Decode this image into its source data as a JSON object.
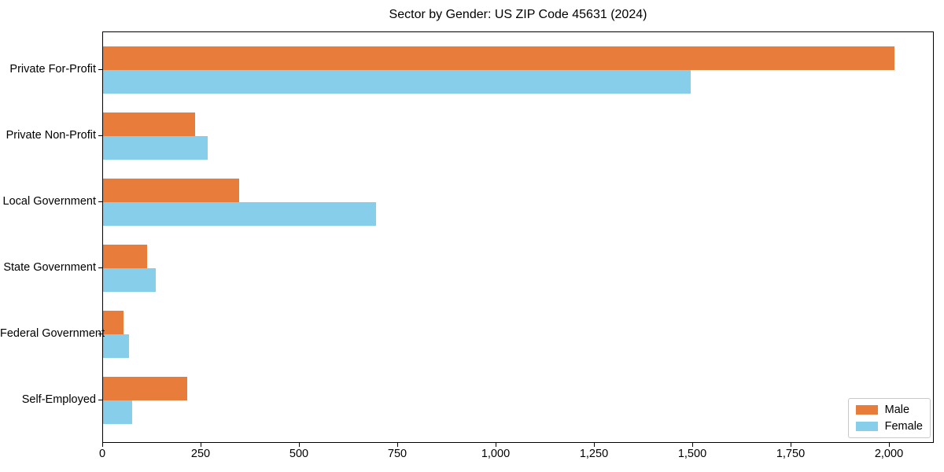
{
  "title": "Sector by Gender: US ZIP Code 45631 (2024)",
  "chart_data": {
    "type": "bar",
    "orientation": "horizontal",
    "title": "Sector by Gender: US ZIP Code 45631 (2024)",
    "categories": [
      "Private For-Profit",
      "Private Non-Profit",
      "Local Government",
      "State Government",
      "Federal Government",
      "Self-Employed"
    ],
    "series": [
      {
        "name": "Male",
        "color": "#e87d3b",
        "values": [
          2012,
          234,
          346,
          112,
          52,
          214
        ]
      },
      {
        "name": "Female",
        "color": "#87ceeb",
        "values": [
          1494,
          266,
          694,
          134,
          66,
          74
        ]
      }
    ],
    "xlabel": "",
    "ylabel": "",
    "xlim": [
      0,
      2114
    ],
    "x_ticks": [
      0,
      250,
      500,
      750,
      1000,
      1250,
      1500,
      1750,
      2000
    ],
    "x_tick_labels": [
      "0",
      "250",
      "500",
      "750",
      "1,000",
      "1,250",
      "1,500",
      "1,750",
      "2,000"
    ],
    "grid": false,
    "legend_position": "lower right",
    "plot_border_color": "#000000",
    "background_color": "#ffffff"
  },
  "legend": {
    "items": [
      {
        "label": "Male",
        "color": "#e87d3b"
      },
      {
        "label": "Female",
        "color": "#87ceeb"
      }
    ]
  }
}
